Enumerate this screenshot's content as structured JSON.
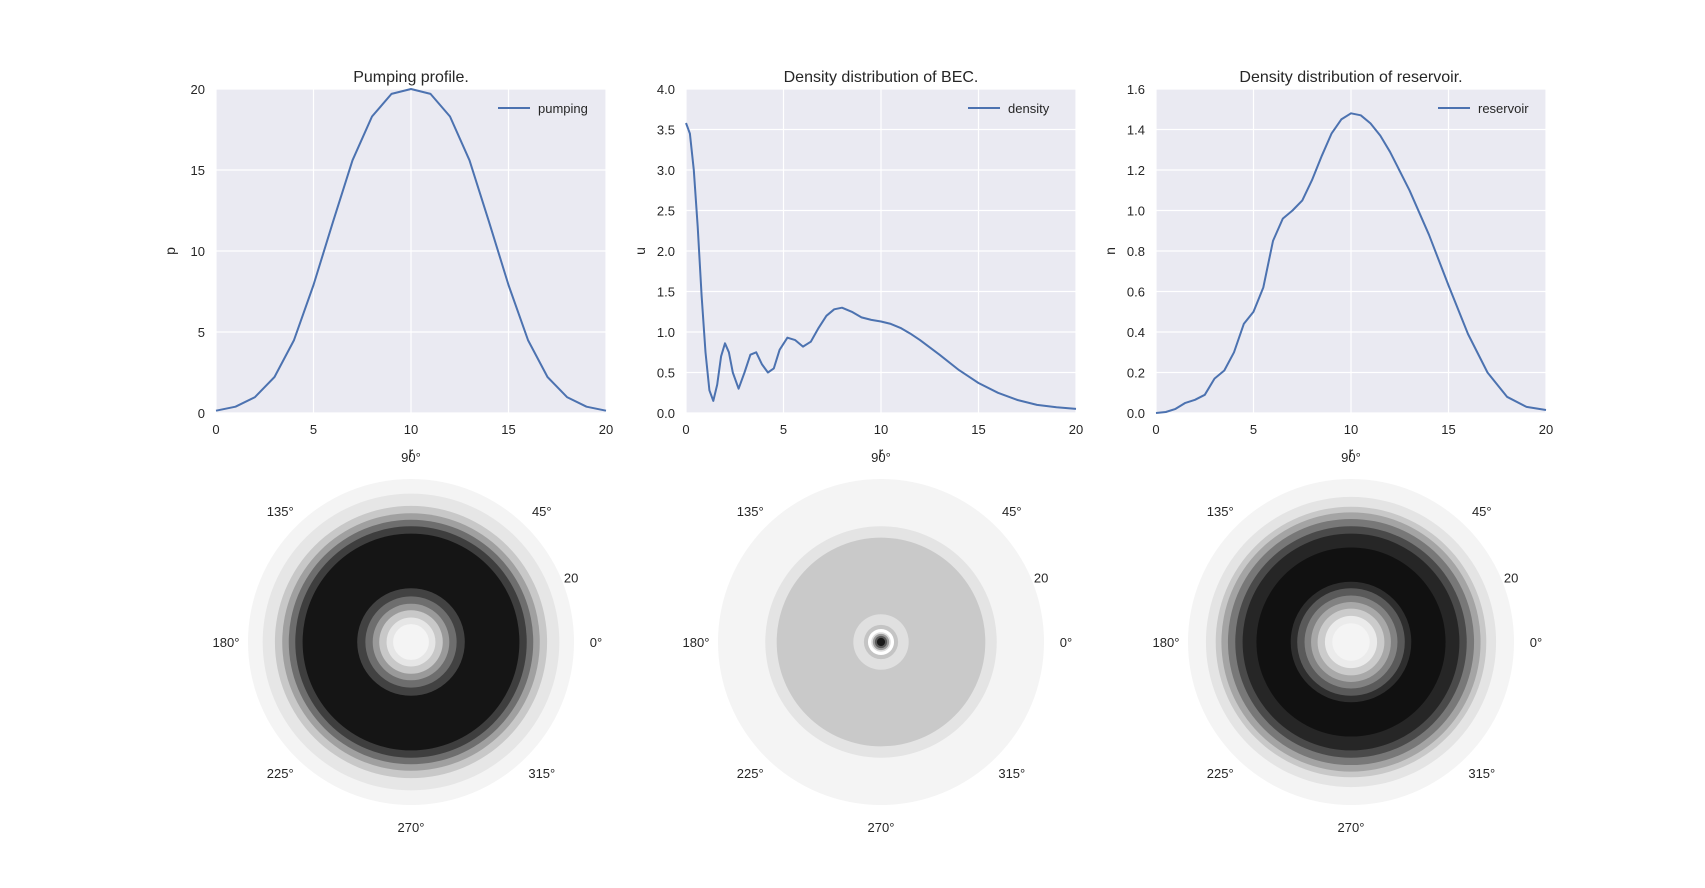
{
  "figure": {
    "style": {
      "axes_bg": "#EAEAF2",
      "grid_color": "#FFFFFF",
      "line_color": "#4C72B0",
      "text_color": "#262626"
    }
  },
  "chart_data": [
    {
      "type": "line",
      "title": "Pumping profile.",
      "xlabel": "r",
      "ylabel": "p",
      "xlim": [
        0,
        20
      ],
      "ylim": [
        0,
        20
      ],
      "xticks": [
        0,
        5,
        10,
        15,
        20
      ],
      "yticks": [
        0,
        5,
        10,
        15,
        20
      ],
      "grid": true,
      "legend_position": "top-right",
      "series": [
        {
          "name": "pumping",
          "x": [
            0,
            1,
            2,
            3,
            4,
            5,
            6,
            7,
            8,
            9,
            10,
            11,
            12,
            13,
            14,
            15,
            16,
            17,
            18,
            19,
            20
          ],
          "y": [
            0.14,
            0.39,
            0.98,
            2.22,
            4.5,
            7.9,
            11.8,
            15.6,
            18.3,
            19.7,
            20.0,
            19.7,
            18.3,
            15.6,
            11.8,
            7.9,
            4.5,
            2.22,
            0.98,
            0.39,
            0.14
          ]
        }
      ]
    },
    {
      "type": "line",
      "title": "Density distribution of BEC.",
      "xlabel": "r",
      "ylabel": "u",
      "xlim": [
        0,
        20
      ],
      "ylim": [
        0,
        4
      ],
      "xticks": [
        0,
        5,
        10,
        15,
        20
      ],
      "yticks": [
        0.0,
        0.5,
        1.0,
        1.5,
        2.0,
        2.5,
        3.0,
        3.5,
        4.0
      ],
      "grid": true,
      "legend_position": "top-right",
      "series": [
        {
          "name": "density",
          "x": [
            0,
            0.2,
            0.4,
            0.6,
            0.8,
            1.0,
            1.2,
            1.4,
            1.6,
            1.8,
            2.0,
            2.2,
            2.4,
            2.7,
            3.0,
            3.3,
            3.6,
            3.9,
            4.2,
            4.5,
            4.8,
            5.2,
            5.6,
            6.0,
            6.4,
            6.8,
            7.2,
            7.6,
            8.0,
            8.5,
            9.0,
            9.5,
            10.0,
            10.5,
            11.0,
            11.5,
            12.0,
            13.0,
            14.0,
            15.0,
            16.0,
            17.0,
            18.0,
            19.0,
            20.0
          ],
          "y": [
            3.58,
            3.45,
            3.0,
            2.3,
            1.45,
            0.75,
            0.28,
            0.15,
            0.35,
            0.7,
            0.86,
            0.75,
            0.5,
            0.3,
            0.5,
            0.72,
            0.75,
            0.6,
            0.5,
            0.55,
            0.78,
            0.93,
            0.9,
            0.82,
            0.88,
            1.05,
            1.2,
            1.28,
            1.3,
            1.25,
            1.18,
            1.15,
            1.13,
            1.1,
            1.05,
            0.98,
            0.9,
            0.72,
            0.53,
            0.37,
            0.25,
            0.16,
            0.1,
            0.07,
            0.05
          ]
        }
      ]
    },
    {
      "type": "line",
      "title": "Density distribution of reservoir.",
      "xlabel": "r",
      "ylabel": "n",
      "xlim": [
        0,
        20
      ],
      "ylim": [
        0,
        1.6
      ],
      "xticks": [
        0,
        5,
        10,
        15,
        20
      ],
      "yticks": [
        0.0,
        0.2,
        0.4,
        0.6,
        0.8,
        1.0,
        1.2,
        1.4,
        1.6
      ],
      "grid": true,
      "legend_position": "top-right",
      "series": [
        {
          "name": "reservoir",
          "x": [
            0,
            0.5,
            1.0,
            1.5,
            2.0,
            2.5,
            3.0,
            3.5,
            4.0,
            4.5,
            5.0,
            5.5,
            6.0,
            6.5,
            7.0,
            7.5,
            8.0,
            8.5,
            9.0,
            9.5,
            10.0,
            10.5,
            11.0,
            11.5,
            12.0,
            13.0,
            14.0,
            15.0,
            16.0,
            17.0,
            18.0,
            19.0,
            20.0
          ],
          "y": [
            0.0,
            0.005,
            0.02,
            0.05,
            0.065,
            0.09,
            0.17,
            0.21,
            0.3,
            0.44,
            0.5,
            0.62,
            0.85,
            0.96,
            1.0,
            1.05,
            1.15,
            1.27,
            1.38,
            1.45,
            1.48,
            1.47,
            1.43,
            1.37,
            1.29,
            1.1,
            0.88,
            0.63,
            0.39,
            0.2,
            0.08,
            0.03,
            0.015
          ]
        }
      ]
    },
    {
      "type": "heatmap",
      "projection": "polar",
      "colormap": "grayscale",
      "theta_ticks": [
        "0°",
        "45°",
        "90°",
        "135°",
        "180°",
        "225°",
        "270°",
        "315°"
      ],
      "r_ticks": [
        "20"
      ],
      "rings": [
        {
          "r": 20.0,
          "color": "#f4f4f4"
        },
        {
          "r": 18.2,
          "color": "#e6e6e6"
        },
        {
          "r": 16.7,
          "color": "#c8c8c8"
        },
        {
          "r": 15.8,
          "color": "#a0a0a0"
        },
        {
          "r": 15.0,
          "color": "#6e6e6e"
        },
        {
          "r": 14.2,
          "color": "#3e3e3e"
        },
        {
          "r": 13.3,
          "color": "#151515"
        },
        {
          "r": 6.6,
          "color": "#424242"
        },
        {
          "r": 5.6,
          "color": "#6e6e6e"
        },
        {
          "r": 4.7,
          "color": "#9a9a9a"
        },
        {
          "r": 3.9,
          "color": "#c8c8c8"
        },
        {
          "r": 3.0,
          "color": "#e6e6e6"
        },
        {
          "r": 2.2,
          "color": "#f4f4f4"
        }
      ]
    },
    {
      "type": "heatmap",
      "projection": "polar",
      "colormap": "grayscale",
      "theta_ticks": [
        "0°",
        "45°",
        "90°",
        "135°",
        "180°",
        "225°",
        "270°",
        "315°"
      ],
      "r_ticks": [
        "20"
      ],
      "rings": [
        {
          "r": 20.0,
          "color": "#f4f4f4"
        },
        {
          "r": 14.2,
          "color": "#e4e4e4"
        },
        {
          "r": 12.8,
          "color": "#c9c9c9"
        },
        {
          "r": 3.4,
          "color": "#e0e0e0"
        },
        {
          "r": 2.1,
          "color": "#c4c4c4"
        },
        {
          "r": 1.6,
          "color": "#ffffff"
        },
        {
          "r": 1.2,
          "color": "#dcdcdc"
        },
        {
          "r": 1.0,
          "color": "#9a9a9a"
        },
        {
          "r": 0.75,
          "color": "#5a5a5a"
        },
        {
          "r": 0.5,
          "color": "#1a1a1a"
        }
      ]
    },
    {
      "type": "heatmap",
      "projection": "polar",
      "colormap": "grayscale",
      "theta_ticks": [
        "0°",
        "45°",
        "90°",
        "135°",
        "180°",
        "225°",
        "270°",
        "315°"
      ],
      "r_ticks": [
        "20"
      ],
      "rings": [
        {
          "r": 20.0,
          "color": "#f4f4f4"
        },
        {
          "r": 17.8,
          "color": "#e4e4e4"
        },
        {
          "r": 16.6,
          "color": "#c8c8c8"
        },
        {
          "r": 15.9,
          "color": "#a4a4a4"
        },
        {
          "r": 15.1,
          "color": "#787878"
        },
        {
          "r": 14.2,
          "color": "#4a4a4a"
        },
        {
          "r": 13.3,
          "color": "#262626"
        },
        {
          "r": 11.6,
          "color": "#111111"
        },
        {
          "r": 7.4,
          "color": "#2e2e2e"
        },
        {
          "r": 6.6,
          "color": "#5a5a5a"
        },
        {
          "r": 5.7,
          "color": "#828282"
        },
        {
          "r": 4.9,
          "color": "#a8a8a8"
        },
        {
          "r": 4.1,
          "color": "#cbcbcb"
        },
        {
          "r": 3.2,
          "color": "#ebebeb"
        },
        {
          "r": 2.3,
          "color": "#f4f4f4"
        }
      ]
    }
  ]
}
